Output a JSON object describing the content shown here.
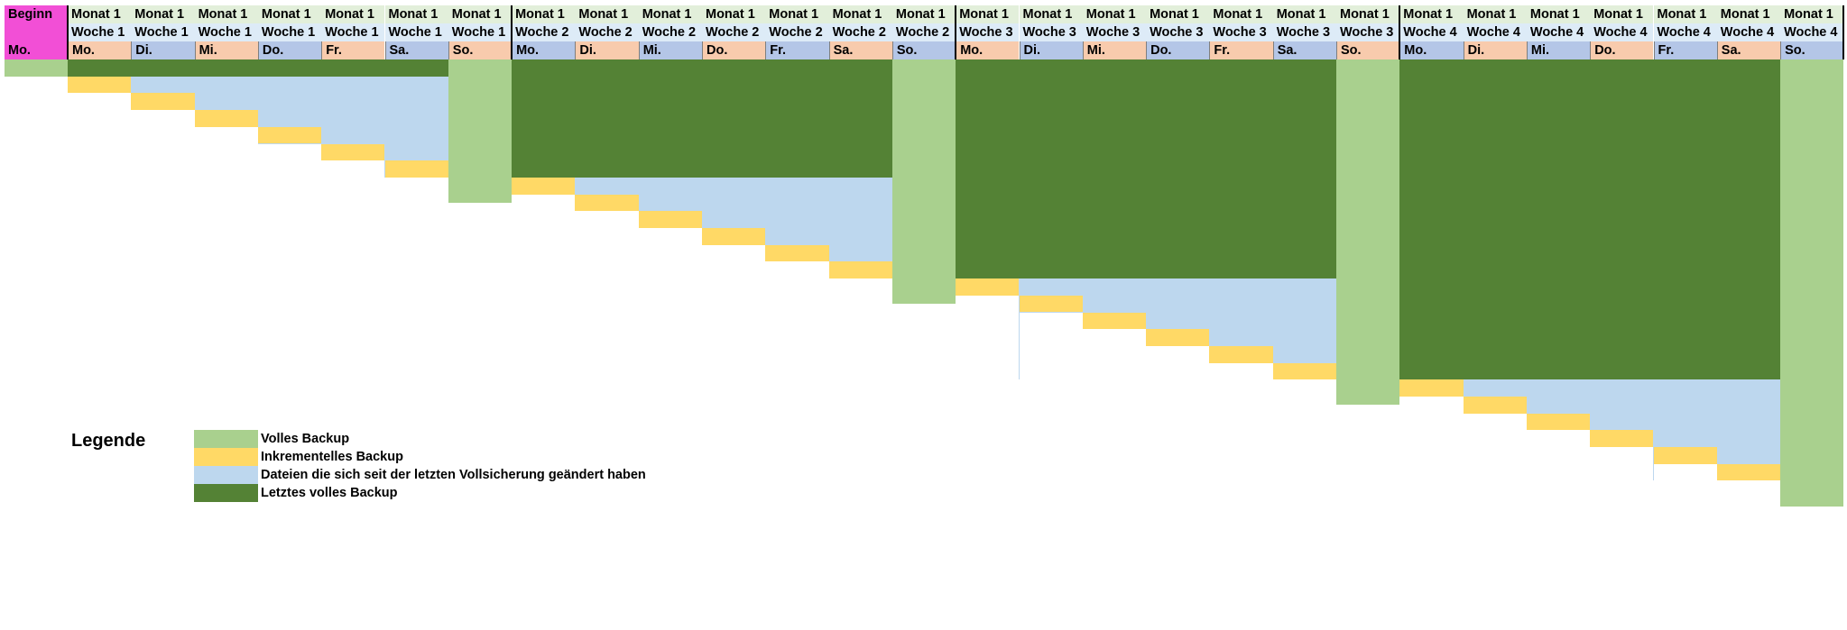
{
  "colors": {
    "full_backup": "#a9d08e",
    "incremental_backup": "#ffd966",
    "changed_since_full": "#bdd7ee",
    "last_full_backup": "#548235",
    "start_cell": "#f24fd6",
    "month_row": "#e2efda",
    "week_row": "#ddebf7",
    "day_row_even": "#f8cbad",
    "day_row_odd": "#b4c6e7"
  },
  "start": {
    "label": "Beginn",
    "day": "Mo."
  },
  "days": [
    {
      "month": "Monat 1",
      "week": "Woche 1",
      "day": "Mo."
    },
    {
      "month": "Monat 1",
      "week": "Woche 1",
      "day": "Di."
    },
    {
      "month": "Monat 1",
      "week": "Woche 1",
      "day": "Mi."
    },
    {
      "month": "Monat 1",
      "week": "Woche 1",
      "day": "Do."
    },
    {
      "month": "Monat 1",
      "week": "Woche 1",
      "day": "Fr."
    },
    {
      "month": "Monat 1",
      "week": "Woche 1",
      "day": "Sa."
    },
    {
      "month": "Monat 1",
      "week": "Woche 1",
      "day": "So."
    },
    {
      "month": "Monat 1",
      "week": "Woche 2",
      "day": "Mo."
    },
    {
      "month": "Monat 1",
      "week": "Woche 2",
      "day": "Di."
    },
    {
      "month": "Monat 1",
      "week": "Woche 2",
      "day": "Mi."
    },
    {
      "month": "Monat 1",
      "week": "Woche 2",
      "day": "Do."
    },
    {
      "month": "Monat 1",
      "week": "Woche 2",
      "day": "Fr."
    },
    {
      "month": "Monat 1",
      "week": "Woche 2",
      "day": "Sa."
    },
    {
      "month": "Monat 1",
      "week": "Woche 2",
      "day": "So."
    },
    {
      "month": "Monat 1",
      "week": "Woche 3",
      "day": "Mo."
    },
    {
      "month": "Monat 1",
      "week": "Woche 3",
      "day": "Di."
    },
    {
      "month": "Monat 1",
      "week": "Woche 3",
      "day": "Mi."
    },
    {
      "month": "Monat 1",
      "week": "Woche 3",
      "day": "Do."
    },
    {
      "month": "Monat 1",
      "week": "Woche 3",
      "day": "Fr."
    },
    {
      "month": "Monat 1",
      "week": "Woche 3",
      "day": "Sa."
    },
    {
      "month": "Monat 1",
      "week": "Woche 3",
      "day": "So."
    },
    {
      "month": "Monat 1",
      "week": "Woche 4",
      "day": "Mo."
    },
    {
      "month": "Monat 1",
      "week": "Woche 4",
      "day": "Di."
    },
    {
      "month": "Monat 1",
      "week": "Woche 4",
      "day": "Mi."
    },
    {
      "month": "Monat 1",
      "week": "Woche 4",
      "day": "Do."
    },
    {
      "month": "Monat 1",
      "week": "Woche 4",
      "day": "Fr."
    },
    {
      "month": "Monat 1",
      "week": "Woche 4",
      "day": "Sa."
    },
    {
      "month": "Monat 1",
      "week": "Woche 4",
      "day": "So."
    }
  ],
  "legend": {
    "title": "Legende",
    "items": [
      {
        "key": "full_backup",
        "label": "Volles Backup"
      },
      {
        "key": "incremental_backup",
        "label": "Inkrementelles Backup"
      },
      {
        "key": "changed_since_full",
        "label": "Dateien die sich seit der letzten Vollsicherung geändert haben"
      },
      {
        "key": "last_full_backup",
        "label": "Letztes volles Backup"
      }
    ]
  }
}
